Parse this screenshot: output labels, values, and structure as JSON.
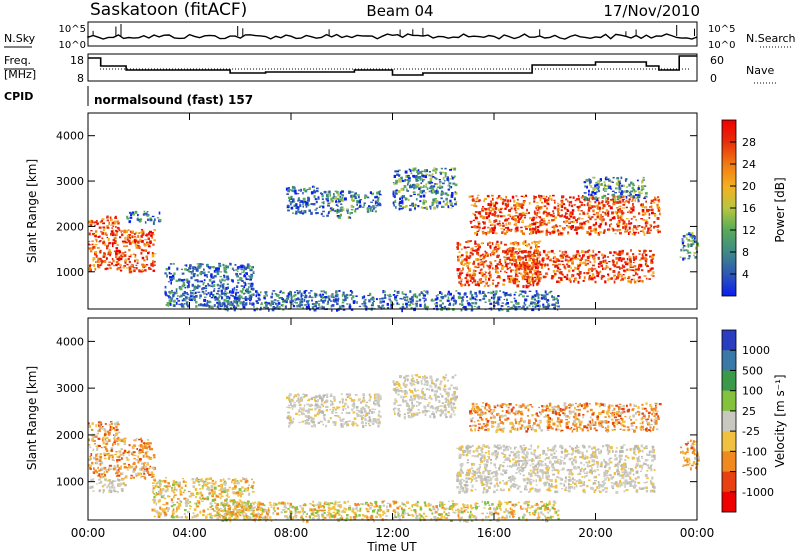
{
  "header": {
    "title": "Saskatoon (fitACF)",
    "beam": "Beam 04",
    "date": "17/Nov/2010"
  },
  "noise_panel": {
    "left_label": "N.Sky",
    "right_label": "N.Search",
    "tick_top": "10^5",
    "tick_bottom": "10^0"
  },
  "freq_panel": {
    "left_label_line1": "Freq.",
    "left_label_line2": "[MHz]",
    "right_label": "Nave",
    "left_ticks": [
      "18",
      "8"
    ],
    "right_ticks": [
      "60",
      "0"
    ]
  },
  "cpid": {
    "label": "CPID",
    "value": "normalsound (fast) 157"
  },
  "chart_data": [
    {
      "type": "heatmap",
      "name": "power",
      "ylabel": "Slant Range [km]",
      "ylim": [
        180,
        4500
      ],
      "yticks": [
        "1000",
        "2000",
        "3000",
        "4000"
      ],
      "xlim_hours": [
        0,
        24
      ],
      "colorbar_label": "Power [dB]",
      "colorbar_ticks": [
        "4",
        "8",
        "12",
        "16",
        "20",
        "24",
        "28"
      ],
      "colorbar_colors": [
        "#0a1ef0",
        "#2e55b8",
        "#3f8a86",
        "#5aac58",
        "#b8c640",
        "#f5b020",
        "#f07a10",
        "#e82c0a",
        "#ee0000"
      ],
      "regions": [
        {
          "t": [
            0.0,
            1.2
          ],
          "r": [
            1050,
            2250
          ],
          "level": "high"
        },
        {
          "t": [
            1.2,
            2.6
          ],
          "r": [
            1000,
            1950
          ],
          "level": "high"
        },
        {
          "t": [
            1.5,
            2.8
          ],
          "r": [
            2100,
            2350
          ],
          "level": "low"
        },
        {
          "t": [
            3.0,
            6.5
          ],
          "r": [
            250,
            1200
          ],
          "level": "low"
        },
        {
          "t": [
            5.0,
            18.5
          ],
          "r": [
            180,
            600
          ],
          "level": "low"
        },
        {
          "t": [
            7.8,
            9.2
          ],
          "r": [
            2300,
            2900
          ],
          "level": "low"
        },
        {
          "t": [
            9.2,
            10.5
          ],
          "r": [
            2200,
            2800
          ],
          "level": "mid"
        },
        {
          "t": [
            10.5,
            11.5
          ],
          "r": [
            2350,
            2800
          ],
          "level": "low"
        },
        {
          "t": [
            12.0,
            14.5
          ],
          "r": [
            2400,
            3300
          ],
          "level": "mid"
        },
        {
          "t": [
            14.5,
            17.8
          ],
          "r": [
            700,
            1700
          ],
          "level": "high"
        },
        {
          "t": [
            15.0,
            22.5
          ],
          "r": [
            1850,
            2700
          ],
          "level": "high"
        },
        {
          "t": [
            16.5,
            22.3
          ],
          "r": [
            800,
            1500
          ],
          "level": "high"
        },
        {
          "t": [
            19.5,
            22.0
          ],
          "r": [
            2600,
            3100
          ],
          "level": "mid"
        },
        {
          "t": [
            23.3,
            24.0
          ],
          "r": [
            1300,
            1900
          ],
          "level": "mid"
        }
      ]
    },
    {
      "type": "heatmap",
      "name": "velocity",
      "ylabel": "Slant Range [km]",
      "ylim": [
        180,
        4500
      ],
      "yticks": [
        "1000",
        "2000",
        "3000",
        "4000"
      ],
      "xlim_hours": [
        0,
        24
      ],
      "xticks": [
        "00:00",
        "04:00",
        "08:00",
        "12:00",
        "16:00",
        "20:00",
        "00:00"
      ],
      "xlabel": "Time UT",
      "colorbar_label": "Velocity [m s⁻¹]",
      "colorbar_ticks": [
        "1000",
        "500",
        "100",
        "25",
        "-25",
        "-100",
        "-500",
        "-1000"
      ],
      "colorbar_colors": [
        "#2a3cc0",
        "#3a78a8",
        "#3a9a4a",
        "#82c23c",
        "#c8c8c0",
        "#f0c040",
        "#f08a20",
        "#e84010",
        "#ee0000"
      ],
      "regions": [
        {
          "t": [
            0.0,
            1.2
          ],
          "r": [
            1100,
            2300
          ],
          "level": "orange"
        },
        {
          "t": [
            1.2,
            2.6
          ],
          "r": [
            1050,
            1950
          ],
          "level": "orange"
        },
        {
          "t": [
            0.0,
            1.5
          ],
          "r": [
            800,
            1100
          ],
          "level": "gray"
        },
        {
          "t": [
            2.5,
            6.5
          ],
          "r": [
            250,
            1100
          ],
          "level": "yellow"
        },
        {
          "t": [
            5.0,
            18.5
          ],
          "r": [
            180,
            600
          ],
          "level": "yellow"
        },
        {
          "t": [
            7.8,
            11.5
          ],
          "r": [
            2200,
            2900
          ],
          "level": "gray"
        },
        {
          "t": [
            12.0,
            14.5
          ],
          "r": [
            2400,
            3300
          ],
          "level": "gray"
        },
        {
          "t": [
            14.5,
            22.3
          ],
          "r": [
            800,
            1800
          ],
          "level": "gray"
        },
        {
          "t": [
            15.0,
            22.5
          ],
          "r": [
            2100,
            2700
          ],
          "level": "orange"
        },
        {
          "t": [
            23.3,
            24.0
          ],
          "r": [
            1300,
            1900
          ],
          "level": "orange"
        }
      ]
    }
  ]
}
